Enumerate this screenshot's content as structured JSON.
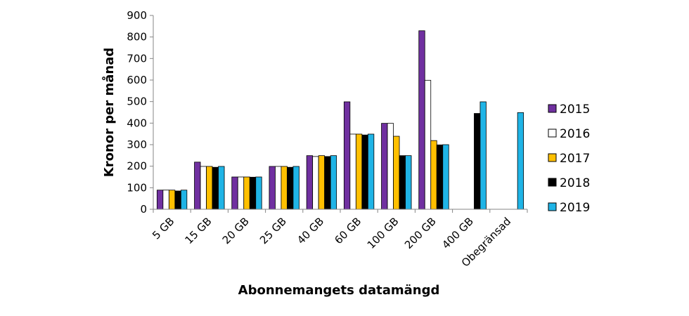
{
  "chart_data": {
    "type": "bar",
    "xlabel": "Abonnemangets datamängd",
    "ylabel": "Kronor per månad",
    "ylim": [
      0,
      900
    ],
    "yticks": [
      0,
      100,
      200,
      300,
      400,
      500,
      600,
      700,
      800,
      900
    ],
    "grid": false,
    "legend_position": "right",
    "categories": [
      "5 GB",
      "15 GB",
      "20 GB",
      "25 GB",
      "40 GB",
      "60 GB",
      "100 GB",
      "200 GB",
      "400 GB",
      "Obegränsad"
    ],
    "series": [
      {
        "name": "2015",
        "color": "#7030a0",
        "values": [
          89,
          219,
          150,
          199,
          249,
          499,
          399,
          829,
          null,
          null
        ]
      },
      {
        "name": "2016",
        "color": "#ffffff",
        "values": [
          89,
          199,
          150,
          199,
          245,
          349,
          399,
          599,
          null,
          null
        ]
      },
      {
        "name": "2017",
        "color": "#ffc000",
        "values": [
          89,
          199,
          150,
          199,
          249,
          349,
          339,
          319,
          null,
          null
        ]
      },
      {
        "name": "2018",
        "color": "#000000",
        "values": [
          85,
          195,
          149,
          195,
          245,
          345,
          249,
          299,
          445,
          null
        ]
      },
      {
        "name": "2019",
        "color": "#1fb4e6",
        "values": [
          89,
          199,
          150,
          199,
          249,
          349,
          249,
          300,
          499,
          449
        ]
      }
    ]
  }
}
